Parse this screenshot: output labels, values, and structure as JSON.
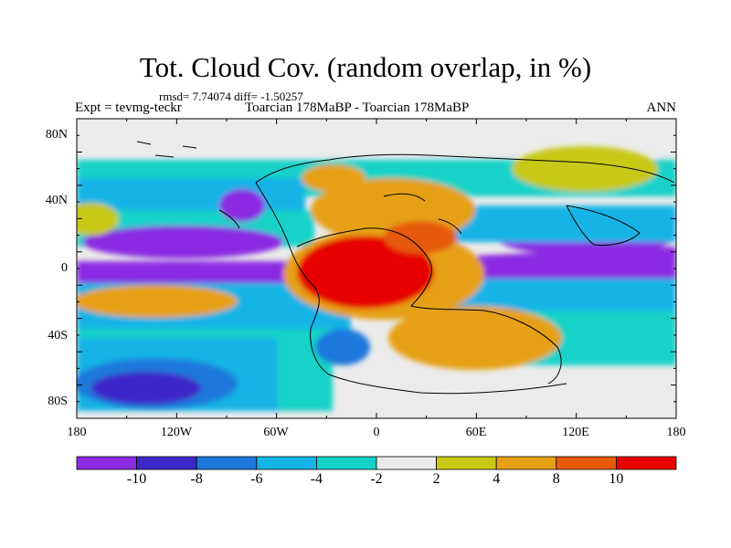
{
  "title": "Tot. Cloud Cov. (random overlap, in %)",
  "stats": "rmsd= 7.74074 diff= -1.50257",
  "experiment": "Expt = tevmg-teckr",
  "subtitle": "Toarcian 178MaBP - Toarcian 178MaBP",
  "season": "ANN",
  "lat_ticks": [
    "80N",
    "40N",
    "0",
    "40S",
    "80S"
  ],
  "lon_ticks": [
    "180",
    "120W",
    "60W",
    "0",
    "60E",
    "120E",
    "180"
  ],
  "colorbar": {
    "labels": [
      "-10",
      "-8",
      "-6",
      "-4",
      "-2",
      "2",
      "4",
      "8",
      "10"
    ],
    "colors": [
      "#8a2be2",
      "#3c28c8",
      "#1e78dc",
      "#14b4e6",
      "#14d2c8",
      "#ebebeb",
      "#c8c814",
      "#e6a014",
      "#e65a0a",
      "#e60000"
    ]
  }
}
